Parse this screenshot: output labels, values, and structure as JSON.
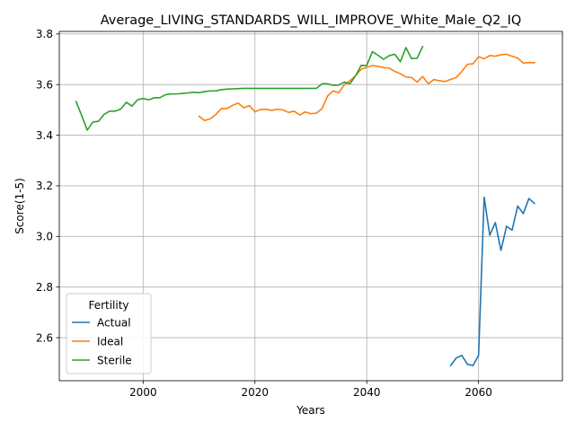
{
  "chart_data": {
    "type": "line",
    "title": "Average_LIVING_STANDARDS_WILL_IMPROVE_White_Male_Q2_IQ",
    "xlabel": "Years",
    "ylabel": "Score(1-5)",
    "xlim": [
      1985,
      2075
    ],
    "ylim": [
      2.43,
      3.81
    ],
    "xticks": [
      2000,
      2020,
      2040,
      2060
    ],
    "yticks": [
      2.6,
      2.8,
      3.0,
      3.2,
      3.4,
      3.6,
      3.8
    ],
    "grid": true,
    "legend": {
      "title": "Fertility",
      "placement": "lower-left"
    },
    "series": [
      {
        "name": "Actual",
        "color": "#1f77b4",
        "x": [
          2055,
          2056,
          2057,
          2058,
          2059,
          2060,
          2061,
          2062,
          2063,
          2064,
          2065,
          2066,
          2067,
          2068,
          2069,
          2070
        ],
        "y": [
          2.49,
          2.52,
          2.53,
          2.495,
          2.49,
          2.53,
          3.155,
          3.005,
          3.055,
          2.945,
          3.04,
          3.025,
          3.12,
          3.09,
          3.15,
          3.13
        ]
      },
      {
        "name": "Ideal",
        "color": "#ff7f0e",
        "x": [
          2010,
          2011,
          2012,
          2013,
          2014,
          2015,
          2016,
          2017,
          2018,
          2019,
          2020,
          2021,
          2022,
          2023,
          2024,
          2025,
          2026,
          2027,
          2028,
          2029,
          2030,
          2031,
          2032,
          2033,
          2034,
          2035,
          2036,
          2037,
          2038,
          2039,
          2040,
          2041,
          2042,
          2043,
          2044,
          2045,
          2046,
          2047,
          2048,
          2049,
          2050,
          2051,
          2052,
          2053,
          2054,
          2055,
          2056,
          2057,
          2058,
          2059,
          2060,
          2061,
          2062,
          2063,
          2064,
          2065,
          2066,
          2067,
          2068,
          2069,
          2070
        ],
        "y": [
          3.475,
          3.458,
          3.465,
          3.482,
          3.505,
          3.505,
          3.518,
          3.527,
          3.508,
          3.517,
          3.492,
          3.502,
          3.502,
          3.498,
          3.503,
          3.5,
          3.49,
          3.495,
          3.48,
          3.492,
          3.485,
          3.487,
          3.505,
          3.555,
          3.575,
          3.568,
          3.6,
          3.615,
          3.635,
          3.66,
          3.668,
          3.675,
          3.672,
          3.667,
          3.665,
          3.652,
          3.643,
          3.63,
          3.628,
          3.61,
          3.632,
          3.603,
          3.62,
          3.615,
          3.612,
          3.62,
          3.628,
          3.652,
          3.68,
          3.682,
          3.71,
          3.702,
          3.715,
          3.712,
          3.718,
          3.72,
          3.712,
          3.705,
          3.685,
          3.687,
          3.686
        ]
      },
      {
        "name": "Sterile",
        "color": "#2ca02c",
        "x": [
          1988,
          1989,
          1990,
          1991,
          1992,
          1993,
          1994,
          1995,
          1996,
          1997,
          1998,
          1999,
          2000,
          2001,
          2002,
          2003,
          2004,
          2005,
          2006,
          2007,
          2008,
          2009,
          2010,
          2011,
          2012,
          2013,
          2014,
          2015,
          2016,
          2017,
          2018,
          2019,
          2020,
          2021,
          2022,
          2023,
          2024,
          2025,
          2026,
          2027,
          2028,
          2029,
          2030,
          2031,
          2032,
          2033,
          2034,
          2035,
          2036,
          2037,
          2038,
          2039,
          2040,
          2041,
          2042,
          2043,
          2044,
          2045,
          2046,
          2047,
          2048,
          2049,
          2050
        ],
        "y": [
          3.533,
          3.478,
          3.42,
          3.452,
          3.455,
          3.482,
          3.495,
          3.495,
          3.503,
          3.53,
          3.515,
          3.54,
          3.545,
          3.54,
          3.548,
          3.548,
          3.56,
          3.563,
          3.563,
          3.565,
          3.567,
          3.57,
          3.568,
          3.572,
          3.575,
          3.575,
          3.58,
          3.582,
          3.583,
          3.584,
          3.585,
          3.585,
          3.585,
          3.585,
          3.585,
          3.585,
          3.585,
          3.585,
          3.585,
          3.585,
          3.585,
          3.585,
          3.585,
          3.585,
          3.603,
          3.603,
          3.597,
          3.598,
          3.61,
          3.603,
          3.635,
          3.676,
          3.675,
          3.73,
          3.716,
          3.7,
          3.714,
          3.72,
          3.69,
          3.746,
          3.703,
          3.704,
          3.75
        ]
      }
    ]
  }
}
